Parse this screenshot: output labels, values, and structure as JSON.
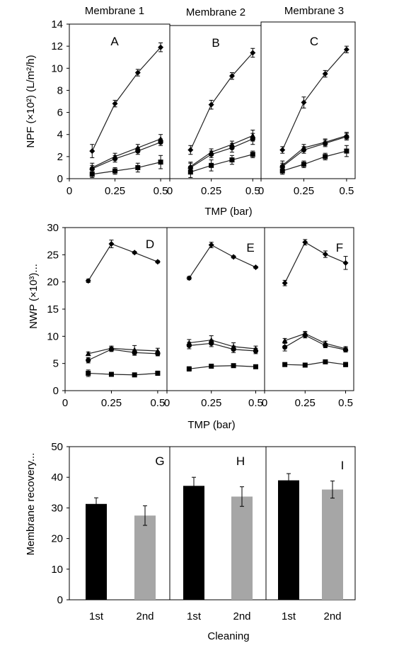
{
  "header": {
    "membranes": [
      "Membrane 1",
      "Membrane 2",
      "Membrane 3"
    ]
  },
  "colors": {
    "bar_first": "#000000",
    "bar_second": "#a6a6a6",
    "axis": "#000000"
  },
  "chart_data": [
    {
      "type": "line",
      "ylabel": "NPF (×10²) (L/m²/h)",
      "xlabel": "TMP (bar)",
      "xlim": [
        0,
        0.55
      ],
      "ylim": [
        0,
        14
      ],
      "xticks": [
        "0",
        "0.25",
        "0.5"
      ],
      "yticks": [
        "0",
        "2",
        "4",
        "6",
        "8",
        "10",
        "12",
        "14"
      ],
      "panels": [
        {
          "letter": "A",
          "x": [
            0.125,
            0.25,
            0.375,
            0.5
          ],
          "series": [
            {
              "marker": "diamond",
              "values": [
                2.5,
                6.8,
                9.6,
                11.9
              ],
              "errors": [
                0.6,
                0.3,
                0.3,
                0.4
              ]
            },
            {
              "marker": "triangle",
              "values": [
                1.0,
                2.0,
                2.8,
                3.6
              ],
              "errors": [
                0.4,
                0.3,
                0.3,
                0.4
              ]
            },
            {
              "marker": "circle",
              "values": [
                0.9,
                1.8,
                2.5,
                3.3
              ],
              "errors": [
                0.3,
                0.3,
                0.3,
                0.3
              ]
            },
            {
              "marker": "square",
              "values": [
                0.4,
                0.7,
                1.0,
                1.5
              ],
              "errors": [
                0.3,
                0.3,
                0.4,
                0.6
              ]
            }
          ]
        },
        {
          "letter": "B",
          "x": [
            0.125,
            0.25,
            0.375,
            0.5
          ],
          "series": [
            {
              "marker": "diamond",
              "values": [
                2.6,
                6.7,
                9.3,
                11.4
              ],
              "errors": [
                0.4,
                0.4,
                0.3,
                0.4
              ]
            },
            {
              "marker": "triangle",
              "values": [
                1.1,
                2.4,
                3.1,
                3.9
              ],
              "errors": [
                0.4,
                0.3,
                0.3,
                0.5
              ]
            },
            {
              "marker": "circle",
              "values": [
                1.0,
                2.2,
                2.8,
                3.6
              ],
              "errors": [
                0.4,
                0.3,
                0.4,
                0.5
              ]
            },
            {
              "marker": "square",
              "values": [
                0.6,
                1.2,
                1.7,
                2.2
              ],
              "errors": [
                0.5,
                0.5,
                0.4,
                0.3
              ]
            }
          ]
        },
        {
          "letter": "C",
          "x": [
            0.125,
            0.25,
            0.375,
            0.5
          ],
          "series": [
            {
              "marker": "diamond",
              "values": [
                2.6,
                6.9,
                9.5,
                11.7
              ],
              "errors": [
                0.3,
                0.5,
                0.3,
                0.3
              ]
            },
            {
              "marker": "triangle",
              "values": [
                1.2,
                2.8,
                3.3,
                3.9
              ],
              "errors": [
                0.4,
                0.3,
                0.3,
                0.3
              ]
            },
            {
              "marker": "circle",
              "values": [
                1.1,
                2.6,
                3.2,
                3.8
              ],
              "errors": [
                0.3,
                0.3,
                0.3,
                0.3
              ]
            },
            {
              "marker": "square",
              "values": [
                0.7,
                1.3,
                2.0,
                2.5
              ],
              "errors": [
                0.3,
                0.3,
                0.3,
                0.5
              ]
            }
          ]
        }
      ]
    },
    {
      "type": "line",
      "ylabel": "NWP (×10³)...",
      "xlabel": "TMP (bar)",
      "xlim": [
        0,
        0.55
      ],
      "ylim": [
        0,
        30
      ],
      "xticks": [
        "0",
        "0.25",
        "0.5"
      ],
      "yticks": [
        "0",
        "5",
        "10",
        "15",
        "20",
        "25",
        "30"
      ],
      "panels": [
        {
          "letter": "D",
          "x": [
            0.125,
            0.25,
            0.375,
            0.5
          ],
          "series": [
            {
              "marker": "diamond",
              "values": [
                20.2,
                27.0,
                25.4,
                23.7
              ],
              "errors": [
                0.3,
                0.7,
                0.2,
                0.2
              ]
            },
            {
              "marker": "triangle",
              "values": [
                6.8,
                7.8,
                7.5,
                7.3
              ],
              "errors": [
                0.3,
                0.4,
                0.8,
                0.5
              ]
            },
            {
              "marker": "circle",
              "values": [
                5.6,
                7.6,
                7.0,
                6.8
              ],
              "errors": [
                0.5,
                0.4,
                0.5,
                0.4
              ]
            },
            {
              "marker": "square",
              "values": [
                3.2,
                3.0,
                2.9,
                3.2
              ],
              "errors": [
                0.6,
                0.3,
                0.3,
                0.4
              ]
            }
          ]
        },
        {
          "letter": "E",
          "x": [
            0.125,
            0.25,
            0.375,
            0.5
          ],
          "series": [
            {
              "marker": "diamond",
              "values": [
                20.7,
                26.8,
                24.6,
                22.7
              ],
              "errors": [
                0.3,
                0.5,
                0.2,
                0.2
              ]
            },
            {
              "marker": "triangle",
              "values": [
                8.8,
                9.3,
                8.1,
                7.7
              ],
              "errors": [
                0.6,
                0.8,
                0.7,
                0.5
              ]
            },
            {
              "marker": "circle",
              "values": [
                8.3,
                8.7,
                7.6,
                7.3
              ],
              "errors": [
                0.6,
                0.6,
                0.6,
                0.5
              ]
            },
            {
              "marker": "square",
              "values": [
                4.0,
                4.5,
                4.6,
                4.4
              ],
              "errors": [
                0.4,
                0.3,
                0.3,
                0.3
              ]
            }
          ]
        },
        {
          "letter": "F",
          "x": [
            0.125,
            0.25,
            0.375,
            0.5
          ],
          "series": [
            {
              "marker": "diamond",
              "values": [
                19.8,
                27.3,
                25.1,
                23.5
              ],
              "errors": [
                0.5,
                0.5,
                0.6,
                1.2
              ]
            },
            {
              "marker": "triangle",
              "values": [
                9.2,
                10.5,
                8.7,
                7.7
              ],
              "errors": [
                0.4,
                0.4,
                0.4,
                0.4
              ]
            },
            {
              "marker": "circle",
              "values": [
                8.0,
                10.2,
                8.3,
                7.5
              ],
              "errors": [
                0.7,
                0.5,
                0.4,
                0.4
              ]
            },
            {
              "marker": "square",
              "values": [
                4.8,
                4.7,
                5.3,
                4.8
              ],
              "errors": [
                0.3,
                0.3,
                0.3,
                0.4
              ]
            }
          ]
        }
      ]
    },
    {
      "type": "bar",
      "ylabel": "Membrane recovery...",
      "xlabel": "Cleaning",
      "ylim": [
        0,
        50
      ],
      "yticks": [
        "0",
        "10",
        "20",
        "30",
        "40",
        "50"
      ],
      "categories": [
        "1st",
        "2nd"
      ],
      "panels": [
        {
          "letter": "G",
          "values": [
            31.3,
            27.5
          ],
          "errors": [
            2.0,
            3.2
          ]
        },
        {
          "letter": "H",
          "values": [
            37.2,
            33.7
          ],
          "errors": [
            2.8,
            3.2
          ]
        },
        {
          "letter": "I",
          "values": [
            39.0,
            36.0
          ],
          "errors": [
            2.2,
            2.8
          ]
        }
      ]
    }
  ]
}
